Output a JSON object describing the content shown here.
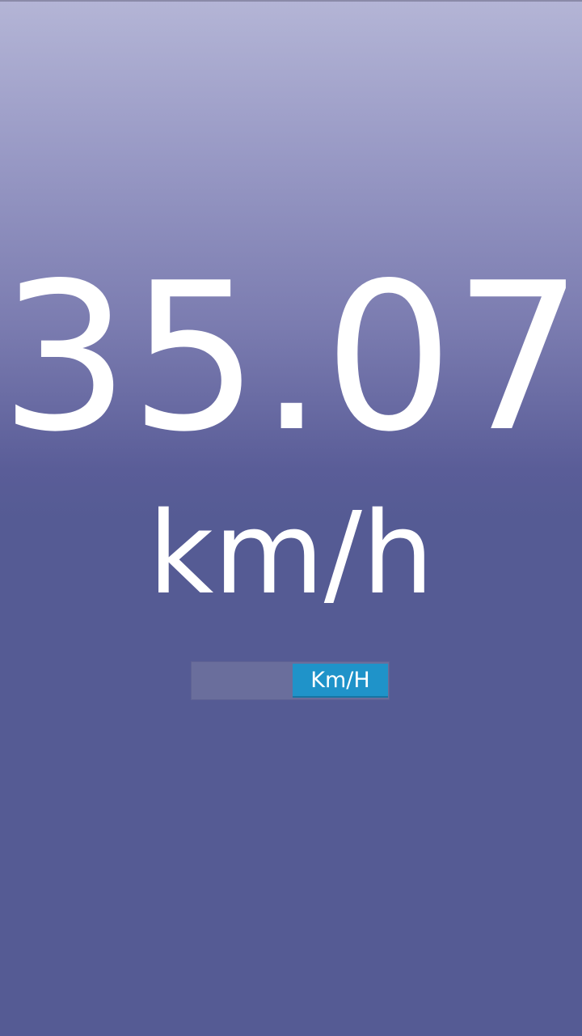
{
  "speedometer": {
    "speed_value": "35.07",
    "speed_unit": "km/h"
  },
  "unit_toggle": {
    "selected_label": "Km/H"
  },
  "colors": {
    "background_top": "#b4b5d6",
    "background_bottom": "#555b94",
    "toggle_accent": "#1f93c9",
    "text": "#ffffff"
  }
}
